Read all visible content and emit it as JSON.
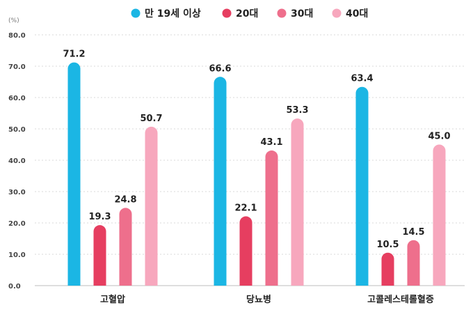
{
  "chart_data": {
    "type": "bar",
    "unit_label": "(%)",
    "categories": [
      "고혈압",
      "당뇨병",
      "고콜레스테롤혈증"
    ],
    "series": [
      {
        "name": "만 19세 이상",
        "color": "#1bb6e4",
        "values": [
          71.2,
          66.6,
          63.4
        ]
      },
      {
        "name": "20대",
        "color": "#e63e60",
        "values": [
          19.3,
          22.1,
          10.5
        ]
      },
      {
        "name": "30대",
        "color": "#ee6f8c",
        "values": [
          24.8,
          43.1,
          14.5
        ]
      },
      {
        "name": "40대",
        "color": "#f7a7bd",
        "values": [
          50.7,
          53.3,
          45.0
        ]
      }
    ],
    "y_ticks": [
      "0.0",
      "10.0",
      "20.0",
      "30.0",
      "40.0",
      "50.0",
      "60.0",
      "70.0",
      "80.0"
    ],
    "ylim": [
      0,
      80
    ],
    "grid": true,
    "legend_position": "top-center"
  }
}
